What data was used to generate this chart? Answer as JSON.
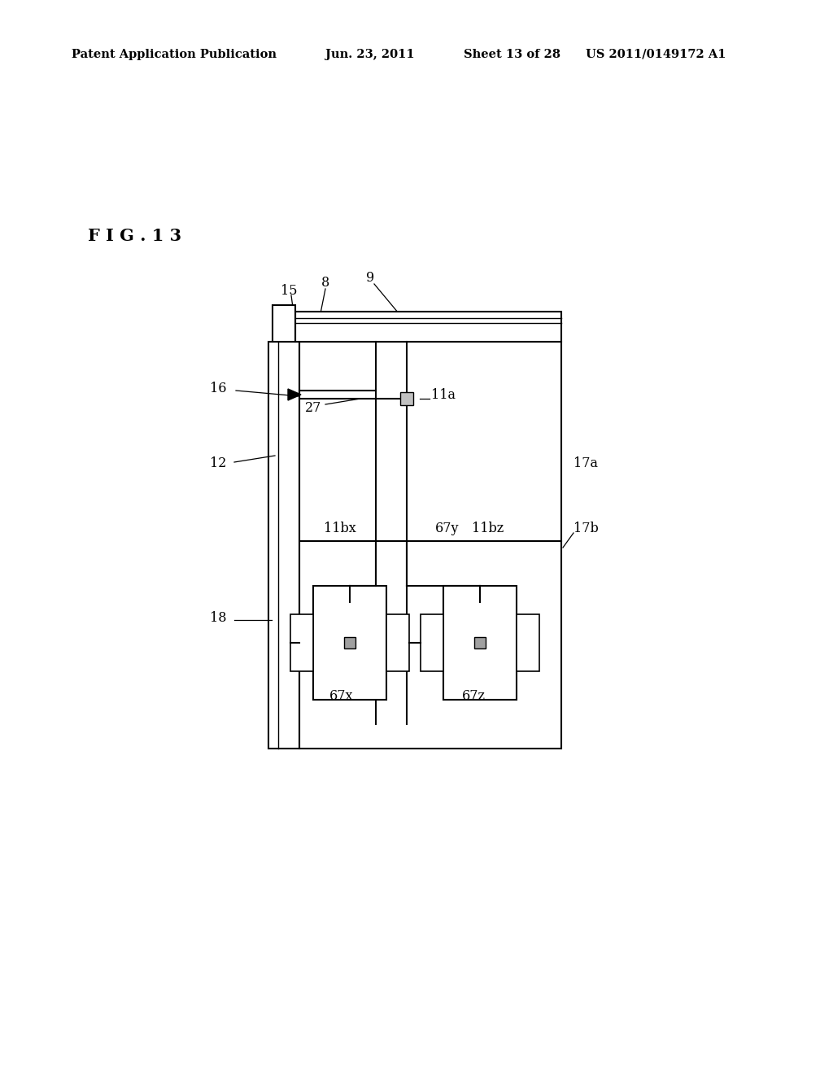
{
  "bg_color": "#ffffff",
  "line_color": "#000000",
  "header_text": "Patent Application Publication",
  "header_date": "Jun. 23, 2011",
  "header_sheet": "Sheet 13 of 28",
  "header_patent": "US 2011/0149172 A1",
  "fig_label": "F I G . 1 3"
}
